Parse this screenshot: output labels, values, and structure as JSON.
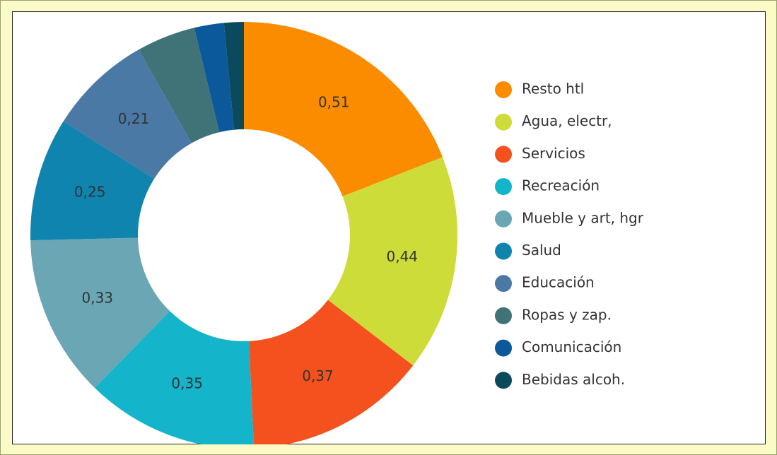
{
  "chart_data": {
    "type": "donut",
    "categories": [
      "Resto htl",
      "Agua, electr,",
      "Servicios",
      "Recreación",
      "Mueble y art, hgr",
      "Salud",
      "Educación",
      "Ropas y zap.",
      "Comunicación",
      "Bebidas alcoh."
    ],
    "values": [
      0.51,
      0.44,
      0.37,
      0.35,
      0.33,
      0.25,
      0.21,
      0.12,
      0.06,
      0.04
    ],
    "value_labels": [
      "0,51",
      "0,44",
      "0,37",
      "0,35",
      "0,33",
      "0,25",
      "0,21",
      null,
      null,
      null
    ],
    "colors": [
      "#fb8c00",
      "#cddc39",
      "#f4511e",
      "#14b5cb",
      "#6aa6b4",
      "#0e84ae",
      "#4a79a6",
      "#3f7377",
      "#0b589b",
      "#0a4a5c"
    ],
    "legend": "right"
  }
}
